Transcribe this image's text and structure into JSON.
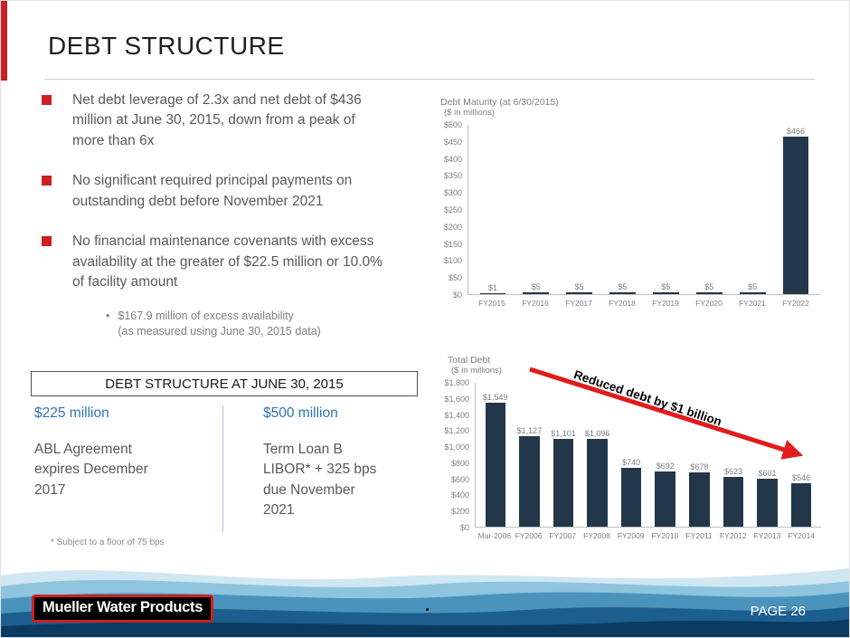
{
  "slide": {
    "title": "DEBT STRUCTURE",
    "page_label": "PAGE 26",
    "logo_text": "Mueller Water Products"
  },
  "colors": {
    "accent_red": "#cc2026",
    "bar_navy": "#22384a",
    "amount_blue": "#2e75b6",
    "arrow_red": "#e21b1b"
  },
  "bullets": [
    {
      "text": "Net debt leverage of 2.3x and net debt of $436 million at June 30, 2015, down from a peak of more than 6x"
    },
    {
      "text": "No significant required principal payments on outstanding debt before November 2021"
    },
    {
      "text": "No financial maintenance covenants with excess availability at the greater of $22.5 million or 10.0% of facility amount",
      "sub": [
        "$167.9 million of excess availability",
        "(as measured using June 30, 2015 data)"
      ]
    }
  ],
  "debt_structure_box": {
    "header": "DEBT STRUCTURE AT JUNE 30, 2015",
    "columns": [
      {
        "amount": "$225 million",
        "description": "ABL  Agreement\nexpires December\n2017"
      },
      {
        "amount": "$500 million",
        "description": "Term Loan B\nLIBOR* + 325 bps\ndue November\n2021"
      }
    ],
    "footnote": "* Subject to a floor of 75 bps"
  },
  "chart_data": [
    {
      "type": "bar",
      "title": "Debt Maturity (at 6/30/2015)",
      "subtitle": "($ in millions)",
      "categories": [
        "FY2015",
        "FY2016",
        "FY2017",
        "FY2018",
        "FY2019",
        "FY2020",
        "FY2021",
        "FY2022"
      ],
      "values": [
        1,
        5,
        5,
        5,
        5,
        5,
        5,
        466
      ],
      "value_labels": [
        "$1",
        "$5",
        "$5",
        "$5",
        "$5",
        "$5",
        "$5",
        "$466"
      ],
      "ylim": [
        0,
        500
      ],
      "ytick_labels": [
        "$0",
        "$50",
        "$100",
        "$150",
        "$200",
        "$250",
        "$300",
        "$350",
        "$400",
        "$450",
        "$500"
      ],
      "grid": false,
      "legend": false
    },
    {
      "type": "bar",
      "title": "Total Debt",
      "subtitle": "($ in millions)",
      "categories": [
        "Mar-2006",
        "FY2006",
        "FY2007",
        "FY2008",
        "FY2009",
        "FY2010",
        "FY2011",
        "FY2012",
        "FY2013",
        "FY2014"
      ],
      "values": [
        1549,
        1127,
        1101,
        1096,
        740,
        692,
        678,
        623,
        601,
        546
      ],
      "value_labels": [
        "$1,549",
        "$1,127",
        "$1,101",
        "$1,096",
        "$740",
        "$692",
        "$678",
        "$623",
        "$601",
        "$546"
      ],
      "ylim": [
        0,
        1800
      ],
      "ytick_labels": [
        "$0",
        "$200",
        "$400",
        "$600",
        "$800",
        "$1,000",
        "$1,200",
        "$1,400",
        "$1,600",
        "$1,800"
      ],
      "grid": false,
      "legend": false,
      "annotation": "Reduced debt by $1 billion"
    }
  ]
}
